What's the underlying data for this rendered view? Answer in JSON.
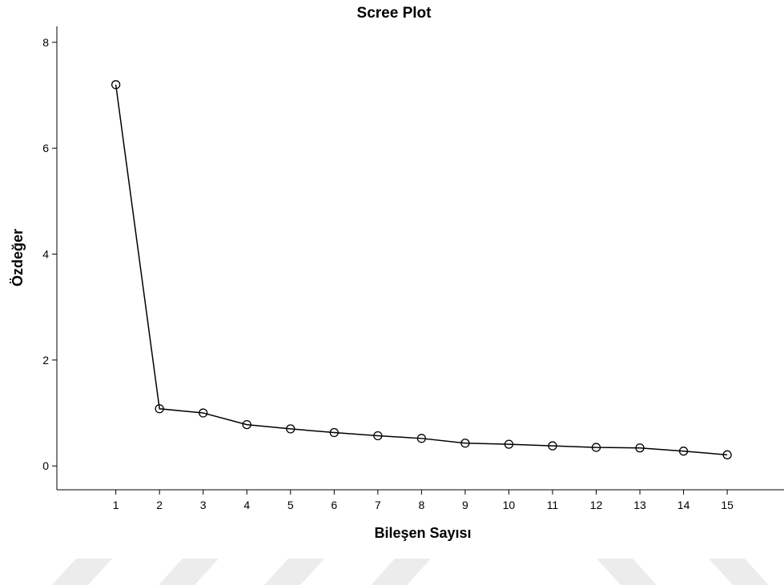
{
  "chart_data": {
    "type": "line",
    "title": "Scree Plot",
    "xlabel": "Bileşen Sayısı",
    "ylabel": "Özdeğer",
    "x": [
      1,
      2,
      3,
      4,
      5,
      6,
      7,
      8,
      9,
      10,
      11,
      12,
      13,
      14,
      15
    ],
    "x_tick_labels": [
      "1",
      "2",
      "3",
      "4",
      "5",
      "6",
      "7",
      "8",
      "9",
      "10",
      "11",
      "12",
      "13",
      "14",
      "15"
    ],
    "series": [
      {
        "values": [
          7.2,
          1.08,
          1.0,
          0.78,
          0.7,
          0.63,
          0.57,
          0.52,
          0.43,
          0.41,
          0.38,
          0.35,
          0.34,
          0.28,
          0.21
        ]
      }
    ],
    "y_ticks": [
      0,
      2,
      4,
      6,
      8
    ],
    "y_tick_labels": [
      "0",
      "2",
      "4",
      "6",
      "8"
    ],
    "ylim": [
      -0.45,
      8.3
    ],
    "xlim": [
      -0.35,
      16.3
    ],
    "grid": false,
    "legend": "none",
    "marker": "open-circle",
    "line_color": "#000000"
  }
}
